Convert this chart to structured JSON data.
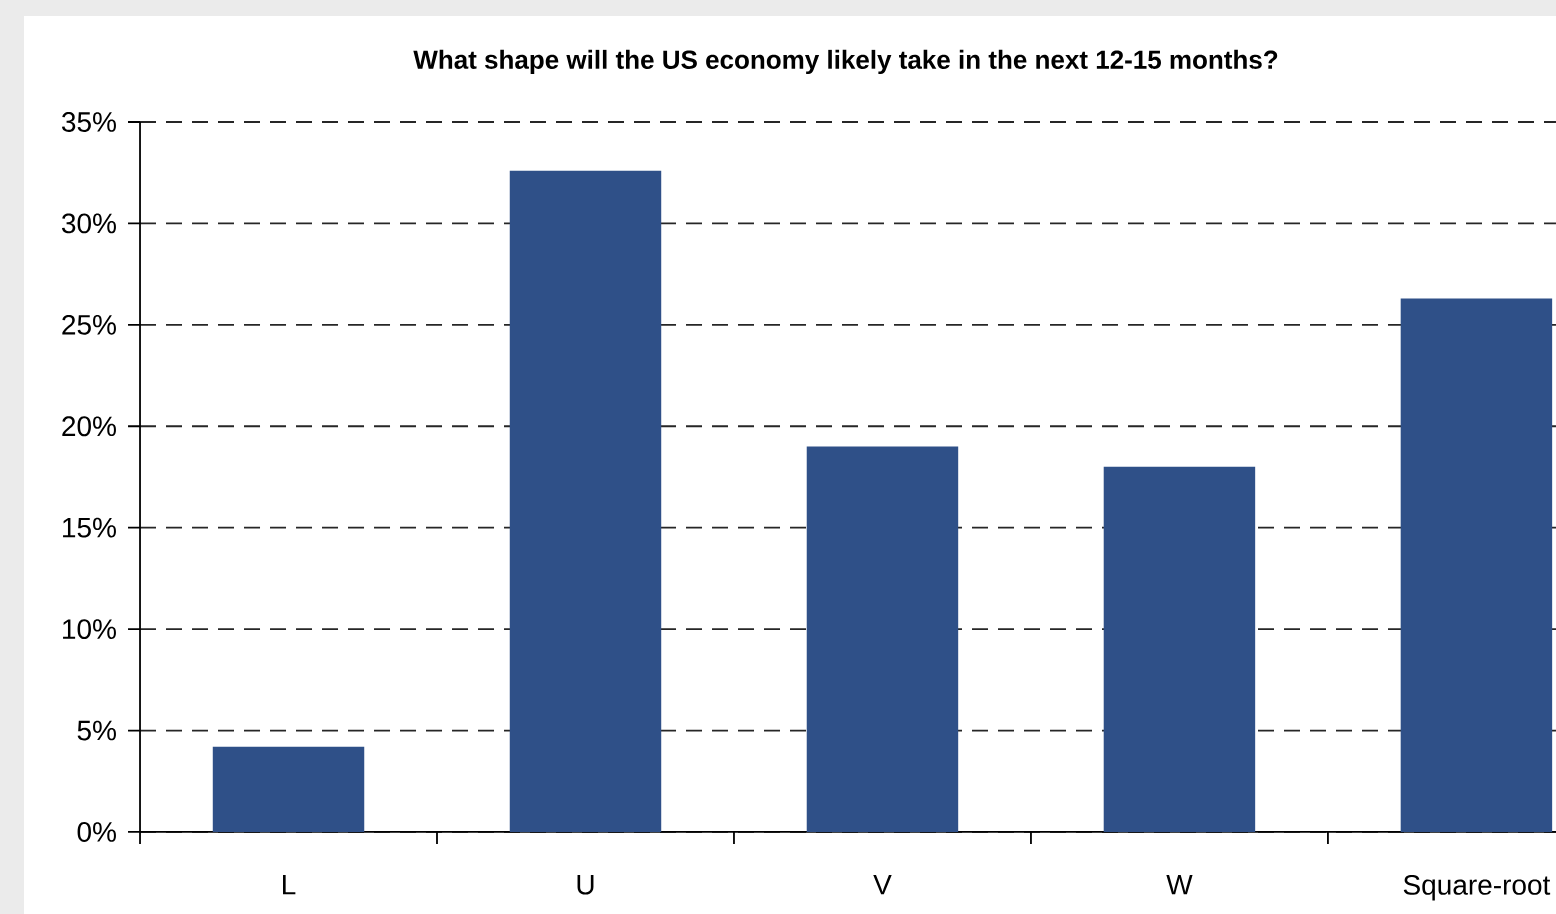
{
  "chart_data": {
    "type": "bar",
    "title": "What shape will the US economy likely take in the next 12-15 months?",
    "categories": [
      "L",
      "U",
      "V",
      "W",
      "Square-root"
    ],
    "values": [
      4.2,
      32.6,
      19.0,
      18.0,
      26.3
    ],
    "color": "#2f5088",
    "ylim": [
      0,
      35
    ],
    "yticks": [
      {
        "value": 0,
        "label": "0%"
      },
      {
        "value": 5,
        "label": "5%"
      },
      {
        "value": 10,
        "label": "10%"
      },
      {
        "value": 15,
        "label": "15%"
      },
      {
        "value": 20,
        "label": "20%"
      },
      {
        "value": 25,
        "label": "25%"
      },
      {
        "value": 30,
        "label": "30%"
      },
      {
        "value": 35,
        "label": "35%"
      }
    ],
    "grid": "y"
  }
}
